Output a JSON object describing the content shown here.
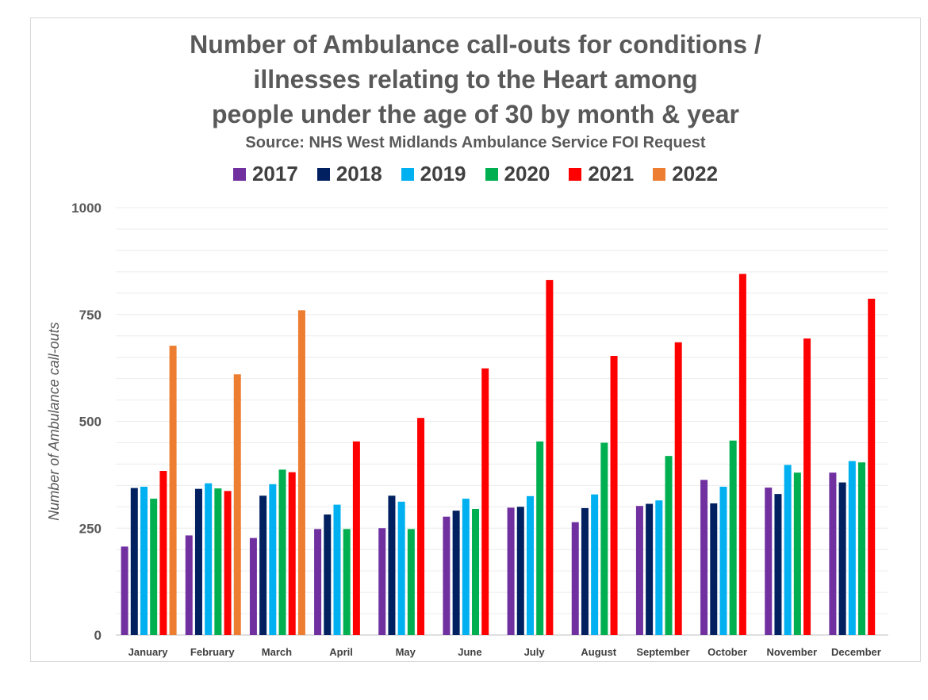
{
  "chart_data": {
    "type": "bar",
    "title_lines": [
      "Number of Ambulance call-outs for conditions /",
      "illnesses relating to the Heart among",
      "people under the age of 30 by month & year"
    ],
    "subtitle": "Source: NHS West Midlands Ambulance Service FOI Request",
    "xlabel": "",
    "ylabel": "Number of Ambulance call-outs",
    "ylim": [
      0,
      1000
    ],
    "yticks": [
      "0",
      "250",
      "500",
      "750",
      "1000"
    ],
    "legend_position": "top",
    "grid": true,
    "categories": [
      "January",
      "February",
      "March",
      "April",
      "May",
      "June",
      "July",
      "August",
      "September",
      "October",
      "November",
      "December"
    ],
    "series": [
      {
        "name": "2017",
        "color": "#7030a0",
        "values": [
          207,
          233,
          227,
          248,
          250,
          277,
          298,
          264,
          302,
          363,
          345,
          380
        ]
      },
      {
        "name": "2018",
        "color": "#002060",
        "values": [
          344,
          342,
          326,
          282,
          326,
          291,
          300,
          297,
          307,
          308,
          330,
          357
        ]
      },
      {
        "name": "2019",
        "color": "#00b0f0",
        "values": [
          347,
          355,
          353,
          305,
          312,
          319,
          325,
          329,
          315,
          347,
          398,
          407
        ]
      },
      {
        "name": "2020",
        "color": "#00b050",
        "values": [
          319,
          343,
          387,
          248,
          248,
          295,
          453,
          450,
          419,
          455,
          380,
          404
        ]
      },
      {
        "name": "2021",
        "color": "#ff0000",
        "values": [
          384,
          337,
          381,
          453,
          508,
          624,
          831,
          653,
          685,
          845,
          694,
          787
        ]
      },
      {
        "name": "2022",
        "color": "#ed7d31",
        "values": [
          677,
          610,
          760,
          null,
          null,
          null,
          null,
          null,
          null,
          null,
          null,
          null
        ]
      }
    ]
  }
}
